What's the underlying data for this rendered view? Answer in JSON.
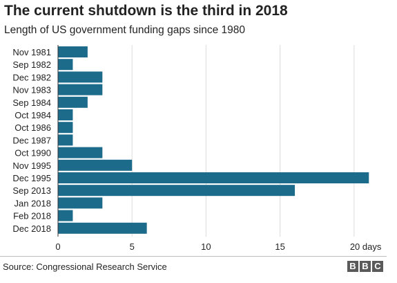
{
  "header": {
    "title": "The current shutdown is the third in 2018",
    "subtitle": "Length of US government funding gaps since 1980"
  },
  "footer": {
    "source": "Source: Congressional Research Service",
    "logo_letters": [
      "B",
      "B",
      "C"
    ]
  },
  "colors": {
    "bar": "#1d6b8a",
    "grid": "#dcdcdc",
    "axis": "#333333",
    "text": "#222222"
  },
  "chart_data": {
    "type": "bar",
    "orientation": "horizontal",
    "title": "The current shutdown is the third in 2018",
    "subtitle": "Length of US government funding gaps since 1980",
    "categories": [
      "Nov 1981",
      "Sep 1982",
      "Dec 1982",
      "Nov 1983",
      "Sep 1984",
      "Oct 1984",
      "Oct 1986",
      "Dec 1987",
      "Oct 1990",
      "Nov 1995",
      "Dec 1995",
      "Sep 2013",
      "Jan 2018",
      "Feb 2018",
      "Dec 2018"
    ],
    "values": [
      2,
      1,
      3,
      3,
      2,
      1,
      1,
      1,
      3,
      5,
      21,
      16,
      3,
      1,
      6
    ],
    "xlim": [
      0,
      21.5
    ],
    "xticks": [
      0,
      5,
      10,
      15,
      20
    ],
    "xtick_labels": [
      "0",
      "5",
      "10",
      "15",
      "20 days"
    ],
    "grid": true
  }
}
